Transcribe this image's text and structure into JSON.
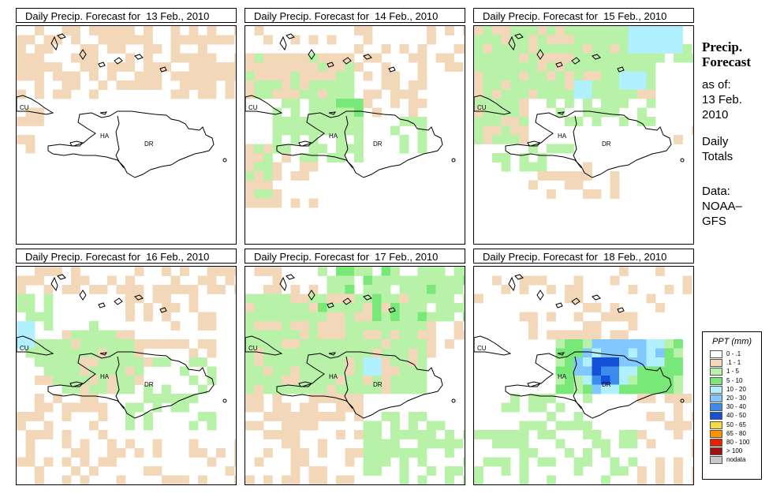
{
  "panels": [
    {
      "title": "Daily Precip. Forecast for  13 Feb., 2010",
      "day": 13
    },
    {
      "title": "Daily Precip. Forecast for  14 Feb., 2010",
      "day": 14
    },
    {
      "title": "Daily Precip. Forecast for  15 Feb., 2010",
      "day": 15
    },
    {
      "title": "Daily Precip. Forecast for  16 Feb., 2010",
      "day": 16
    },
    {
      "title": "Daily Precip. Forecast for  17 Feb., 2010",
      "day": 17
    },
    {
      "title": "Daily Precip. Forecast for  18 Feb., 2010",
      "day": 18
    }
  ],
  "map_labels": {
    "cuba": "CU",
    "haiti": "HA",
    "dominican_republic": "DR"
  },
  "side": {
    "title_line1": "Precip.",
    "title_line2": "Forecast",
    "asof_line1": "as of:",
    "asof_line2": "13 Feb.",
    "asof_line3": "2010",
    "totals_line1": "Daily",
    "totals_line2": "Totals",
    "data_line1": "Data:",
    "data_line2": "NOAA–",
    "data_line3": "GFS"
  },
  "legend": {
    "title": "PPT (mm)",
    "classes": [
      {
        "label": "0 - .1",
        "color": "#ffffff"
      },
      {
        "label": ".1 - 1",
        "color": "#f2d8b8"
      },
      {
        "label": "1 - 5",
        "color": "#b8f2a8"
      },
      {
        "label": "5 - 10",
        "color": "#78e878"
      },
      {
        "label": "10 - 20",
        "color": "#b0f0ff"
      },
      {
        "label": "20 - 30",
        "color": "#80c8ff"
      },
      {
        "label": "30 - 40",
        "color": "#3c8cf0"
      },
      {
        "label": "40 - 50",
        "color": "#1450d8"
      },
      {
        "label": "50 - 65",
        "color": "#f8d840"
      },
      {
        "label": "65 - 80",
        "color": "#ff9000"
      },
      {
        "label": "80 - 100",
        "color": "#e82000"
      },
      {
        "label": "> 100",
        "color": "#a01010"
      },
      {
        "label": "nodata",
        "color": "#c8c8c8"
      }
    ]
  }
}
